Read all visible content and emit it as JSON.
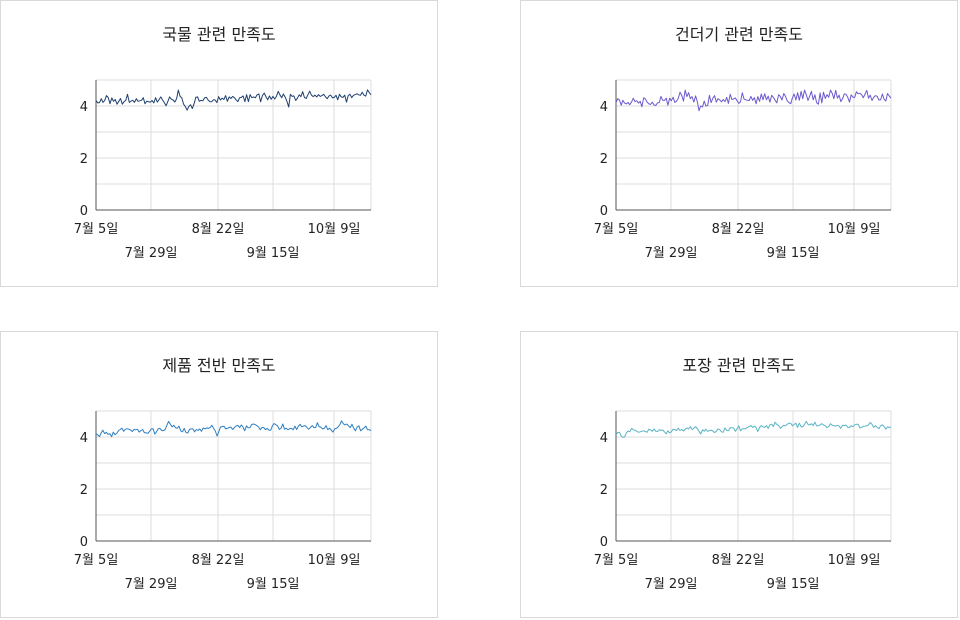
{
  "chart_data": [
    {
      "type": "line",
      "title": "국물 관련 만족도",
      "color": "#1f3f6e",
      "ylim": [
        0,
        5
      ],
      "yticks": [
        0,
        2,
        4
      ],
      "xticks": [
        "7월 5일",
        "7월 29일",
        "8월 22일",
        "9월 15일",
        "10월 9일"
      ],
      "x_start": "2023-07-05",
      "x_end": "2023-10-22",
      "series": [
        {
          "values": [
            4.21,
            4.12,
            4.13,
            4.28,
            4.14,
            4.22,
            4.4,
            4.32,
            4.09,
            4.31,
            4.18,
            4.25,
            4.07,
            4.18,
            4.29,
            4.07,
            4.16,
            4.22,
            4.45,
            4.14,
            4.19,
            4.22,
            4.14,
            4.28,
            4.18,
            4.2,
            4.22,
            4.32,
            4.09,
            4.19,
            4.16,
            4.15,
            4.21,
            4.12,
            4.32,
            4.15,
            4.25,
            4.35,
            4.23,
            4.13,
            4.01,
            4.17,
            4.35,
            4.26,
            4.23,
            4.15,
            4.28,
            4.61,
            4.37,
            4.31,
            4.07,
            3.98,
            3.84,
            3.98,
            4.05,
            3.9,
            4.09,
            4.33,
            4.35,
            4.18,
            4.22,
            4.2,
            4.31,
            4.33,
            4.23,
            4.17,
            4.16,
            4.24,
            4.23,
            4.13,
            4.36,
            4.23,
            4.3,
            4.25,
            4.4,
            4.18,
            4.35,
            4.29,
            4.37,
            4.32,
            4.24,
            4.17,
            4.32,
            4.33,
            4.39,
            4.17,
            4.44,
            4.17,
            4.44,
            4.32,
            4.35,
            4.32,
            4.43,
            4.46,
            4.16,
            4.4,
            4.5,
            4.36,
            4.24,
            4.39,
            4.26,
            4.37,
            4.27,
            4.37,
            4.56,
            4.43,
            4.32,
            4.46,
            4.34,
            4.18,
            3.96,
            4.45,
            4.37,
            4.39,
            4.21,
            4.3,
            4.43,
            4.36,
            4.55,
            4.33,
            4.29,
            4.43,
            4.57,
            4.42,
            4.36,
            4.42,
            4.35,
            4.44,
            4.37,
            4.4,
            4.45,
            4.35,
            4.28,
            4.39,
            4.42,
            4.31,
            4.33,
            4.41,
            4.24,
            4.45,
            4.35,
            4.33,
            4.42,
            4.15,
            4.4,
            4.45,
            4.32,
            4.41,
            4.44,
            4.47,
            4.43,
            4.41,
            4.53,
            4.41,
            4.38,
            4.62,
            4.52,
            4.43
          ]
        }
      ]
    },
    {
      "type": "line",
      "title": "건더기 관련 만족도",
      "color": "#6a5acd",
      "ylim": [
        0,
        5
      ],
      "yticks": [
        0,
        2,
        4
      ],
      "xticks": [
        "7월 5일",
        "7월 29일",
        "8월 22일",
        "9월 15일",
        "10월 9일"
      ],
      "x_start": "2023-07-05",
      "x_end": "2023-10-22",
      "series": [
        {
          "values": [
            4.13,
            4.28,
            4.23,
            4.03,
            4.22,
            4.11,
            4.08,
            4.14,
            4.05,
            4.16,
            4.3,
            4.17,
            4.2,
            4.11,
            4.18,
            3.97,
            4.32,
            4.27,
            4.15,
            4.08,
            4.06,
            4.15,
            4.04,
            4.02,
            4.12,
            4.13,
            4.37,
            4.22,
            4.21,
            4.3,
            4.03,
            4.3,
            4.2,
            4.34,
            4.14,
            4.18,
            4.3,
            4.53,
            4.41,
            4.19,
            4.61,
            4.36,
            4.51,
            4.28,
            4.36,
            4.15,
            4.39,
            4.17,
            3.82,
            4.0,
            3.96,
            4.19,
            4.0,
            4.02,
            4.41,
            4.13,
            4.3,
            4.4,
            4.15,
            4.28,
            4.23,
            4.16,
            4.25,
            4.17,
            4.33,
            4.1,
            4.45,
            4.25,
            4.27,
            4.31,
            4.2,
            4.1,
            4.16,
            4.51,
            4.27,
            4.24,
            4.22,
            4.21,
            4.37,
            4.22,
            4.32,
            4.09,
            4.36,
            4.18,
            4.46,
            4.24,
            4.47,
            4.24,
            4.38,
            4.15,
            4.41,
            4.33,
            4.22,
            4.12,
            4.43,
            4.37,
            4.23,
            4.48,
            4.37,
            4.2,
            4.13,
            4.09,
            4.31,
            4.46,
            4.23,
            4.51,
            4.22,
            4.56,
            4.28,
            4.61,
            4.43,
            4.21,
            4.38,
            4.56,
            4.24,
            4.43,
            4.13,
            4.07,
            4.5,
            4.12,
            4.53,
            4.29,
            4.44,
            4.34,
            4.61,
            4.49,
            4.28,
            4.6,
            4.3,
            4.42,
            4.17,
            4.28,
            4.47,
            4.45,
            4.33,
            4.15,
            4.43,
            4.34,
            4.33,
            4.55,
            4.47,
            4.49,
            4.44,
            4.32,
            4.46,
            4.6,
            4.3,
            4.42,
            4.21,
            4.34,
            4.4,
            4.37,
            4.23,
            4.24,
            4.46,
            4.26,
            4.19,
            4.48,
            4.39,
            4.3
          ]
        }
      ]
    },
    {
      "type": "line",
      "title": "제품 전반 만족도",
      "color": "#2e7fc1",
      "ylim": [
        0,
        5
      ],
      "yticks": [
        0,
        2,
        4
      ],
      "xticks": [
        "7월 5일",
        "7월 29일",
        "8월 22일",
        "9월 15일",
        "10월 9일"
      ],
      "x_start": "2023-07-05",
      "x_end": "2023-10-22",
      "series": [
        {
          "values": [
            4.13,
            4.08,
            4.01,
            4.16,
            4.26,
            4.13,
            4.18,
            4.1,
            4.13,
            4.01,
            4.19,
            4.09,
            4.14,
            4.25,
            4.29,
            4.34,
            4.22,
            4.3,
            4.32,
            4.3,
            4.27,
            4.21,
            4.29,
            4.28,
            4.3,
            4.19,
            4.25,
            4.29,
            4.16,
            4.16,
            4.14,
            4.22,
            4.31,
            4.32,
            4.11,
            4.2,
            4.32,
            4.33,
            4.25,
            4.24,
            4.3,
            4.45,
            4.6,
            4.49,
            4.39,
            4.45,
            4.35,
            4.34,
            4.42,
            4.24,
            4.2,
            4.33,
            4.18,
            4.15,
            4.29,
            4.31,
            4.31,
            4.2,
            4.29,
            4.25,
            4.31,
            4.22,
            4.35,
            4.31,
            4.35,
            4.33,
            4.37,
            4.45,
            4.33,
            4.23,
            4.04,
            4.2,
            4.39,
            4.4,
            4.41,
            4.31,
            4.33,
            4.37,
            4.38,
            4.29,
            4.37,
            4.42,
            4.45,
            4.36,
            4.46,
            4.39,
            4.24,
            4.43,
            4.35,
            4.36,
            4.48,
            4.5,
            4.48,
            4.44,
            4.39,
            4.28,
            4.37,
            4.36,
            4.28,
            4.33,
            4.26,
            4.26,
            4.43,
            4.52,
            4.47,
            4.43,
            4.29,
            4.34,
            4.5,
            4.3,
            4.34,
            4.28,
            4.32,
            4.33,
            4.28,
            4.42,
            4.29,
            4.41,
            4.49,
            4.39,
            4.42,
            4.44,
            4.36,
            4.3,
            4.37,
            4.44,
            4.36,
            4.37,
            4.55,
            4.4,
            4.38,
            4.31,
            4.33,
            4.44,
            4.28,
            4.34,
            4.27,
            4.19,
            4.31,
            4.33,
            4.39,
            4.48,
            4.62,
            4.51,
            4.46,
            4.5,
            4.43,
            4.36,
            4.49,
            4.34,
            4.24,
            4.39,
            4.43,
            4.24,
            4.3,
            4.35,
            4.42,
            4.28,
            4.28,
            4.25
          ]
        }
      ]
    },
    {
      "type": "line",
      "title": "포장 관련 만족도",
      "color": "#5ab4c5",
      "ylim": [
        0,
        5
      ],
      "yticks": [
        0,
        2,
        4
      ],
      "xticks": [
        "7월 5일",
        "7월 29일",
        "8월 22일",
        "9월 15일",
        "10월 9일"
      ],
      "x_start": "2023-07-05",
      "x_end": "2023-10-22",
      "series": [
        {
          "values": [
            4.08,
            4.17,
            4.18,
            4.04,
            3.99,
            4.0,
            4.16,
            4.23,
            4.2,
            4.33,
            4.28,
            4.26,
            4.22,
            4.18,
            4.2,
            4.22,
            4.24,
            4.21,
            4.18,
            4.3,
            4.27,
            4.22,
            4.31,
            4.22,
            4.21,
            4.28,
            4.25,
            4.27,
            4.2,
            4.12,
            4.24,
            4.16,
            4.2,
            4.3,
            4.28,
            4.25,
            4.34,
            4.25,
            4.29,
            4.23,
            4.3,
            4.35,
            4.31,
            4.4,
            4.29,
            4.33,
            4.4,
            4.32,
            4.22,
            4.11,
            4.28,
            4.22,
            4.3,
            4.21,
            4.25,
            4.26,
            4.23,
            4.17,
            4.22,
            4.31,
            4.28,
            4.2,
            4.18,
            4.35,
            4.25,
            4.24,
            4.36,
            4.35,
            4.35,
            4.22,
            4.32,
            4.43,
            4.24,
            4.32,
            4.32,
            4.32,
            4.37,
            4.4,
            4.44,
            4.37,
            4.41,
            4.36,
            4.21,
            4.37,
            4.44,
            4.39,
            4.37,
            4.44,
            4.33,
            4.47,
            4.49,
            4.4,
            4.57,
            4.48,
            4.45,
            4.33,
            4.39,
            4.45,
            4.43,
            4.49,
            4.53,
            4.53,
            4.43,
            4.48,
            4.53,
            4.37,
            4.53,
            4.4,
            4.39,
            4.49,
            4.6,
            4.49,
            4.46,
            4.51,
            4.44,
            4.57,
            4.43,
            4.43,
            4.47,
            4.51,
            4.46,
            4.43,
            4.36,
            4.4,
            4.51,
            4.45,
            4.44,
            4.42,
            4.45,
            4.42,
            4.33,
            4.45,
            4.44,
            4.46,
            4.37,
            4.37,
            4.43,
            4.4,
            4.47,
            4.49,
            4.49,
            4.35,
            4.37,
            4.41,
            4.42,
            4.43,
            4.47,
            4.56,
            4.49,
            4.37,
            4.44,
            4.37,
            4.32,
            4.43,
            4.47,
            4.4,
            4.3,
            4.39,
            4.37,
            4.39
          ]
        }
      ]
    }
  ]
}
